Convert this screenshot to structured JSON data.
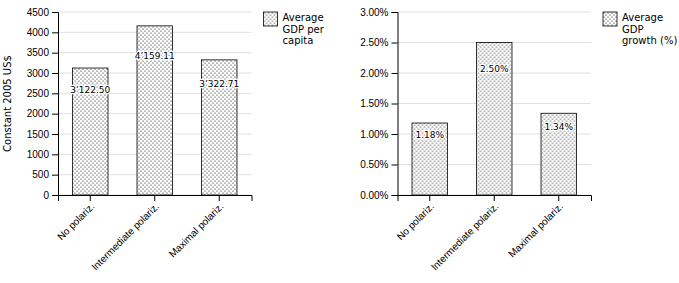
{
  "chart_data": [
    {
      "type": "bar",
      "categories": [
        "No polariz.",
        "Intermediate polariz.",
        "Maximal polariz."
      ],
      "series": [
        {
          "name": "Average\nGDP per\ncapita",
          "color": "#ffffff",
          "values": [
            3122.5,
            4159.11,
            3322.71
          ],
          "value_labels": [
            "3’122.50",
            "4’159.11",
            "3’322.71"
          ]
        }
      ],
      "y_label": "Constant 2005 US$",
      "ylim": [
        0,
        4500
      ],
      "yticks": [
        0,
        500,
        1000,
        1500,
        2000,
        2500,
        3000,
        3500,
        4000,
        4500
      ],
      "grid": true,
      "data_labels": true,
      "legend": "right"
    },
    {
      "type": "bar",
      "categories": [
        "No polariz.",
        "Intermediate polariz.",
        "Maximal polariz."
      ],
      "series": [
        {
          "name": "Average\nGDP\ngrowth (%)",
          "color": "#ffffff",
          "values": [
            0.0118,
            0.025,
            0.0134
          ],
          "value_labels": [
            "1.18%",
            "2.50%",
            "1.34%"
          ]
        }
      ],
      "ylim": [
        0.0,
        0.03
      ],
      "yticks": [
        {
          "value": 0.0,
          "label": "0.00%"
        },
        {
          "value": 0.005,
          "label": "0.50%"
        },
        {
          "value": 0.01,
          "label": "1.00%"
        },
        {
          "value": 0.015,
          "label": "1.50%"
        },
        {
          "value": 0.02,
          "label": "2.00%"
        },
        {
          "value": 0.025,
          "label": "2.50%"
        },
        {
          "value": 0.03,
          "label": "3.00%"
        }
      ],
      "grid": true,
      "data_labels": true,
      "legend": "right"
    }
  ]
}
